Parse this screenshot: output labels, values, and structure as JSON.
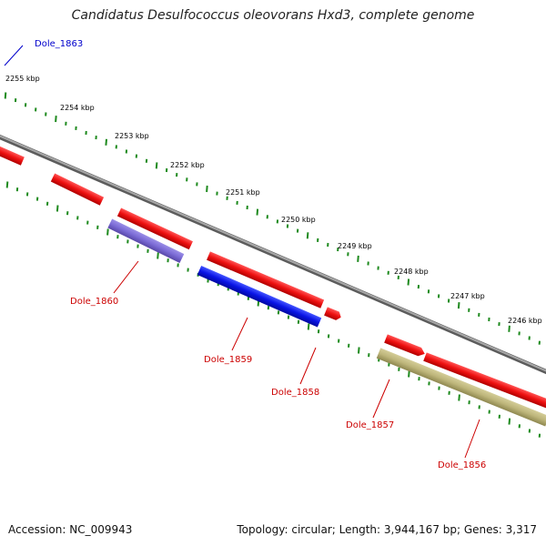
{
  "title": "Candidatus Desulfococcus oleovorans Hxd3, complete genome",
  "accession": "Accession: NC_009943",
  "topology": "Topology: circular; Length: 3,944,167 bp; Genes: 3,317",
  "colors": {
    "backbone": "#8a8a8a",
    "ticks": "#1e8a1e",
    "forward_cds": "#ee1111",
    "gene_label": "#cc0000",
    "highlight_label": "#0000cc",
    "blue_cds": "#0a14e6",
    "purple_cds": "#7b6bd6",
    "olive_cds": "#bdb57a"
  },
  "scale_labels": [
    "2255 kbp",
    "2254 kbp",
    "2253 kbp",
    "2252 kbp",
    "2251 kbp",
    "2250 kbp",
    "2249 kbp",
    "2248 kbp",
    "2247 kbp",
    "2246 kbp"
  ],
  "gene_labels": [
    "Dole_1863",
    "Dole_1860",
    "Dole_1859",
    "Dole_1858",
    "Dole_1857",
    "Dole_1856"
  ]
}
